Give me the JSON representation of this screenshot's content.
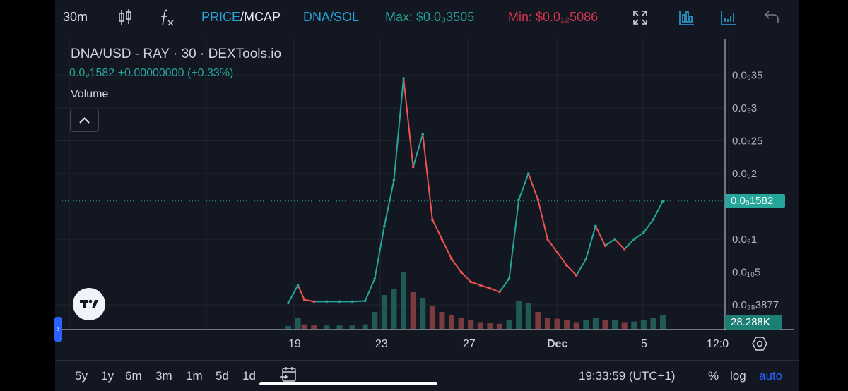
{
  "toolbar": {
    "interval": "30m",
    "price_label": "PRICE",
    "slash": "/",
    "mcap_label": "MCAP",
    "pair": "DNA/SOL",
    "max_label": "Max: $0.0₉3505",
    "min_label": "Min: $0.0₁₂5086",
    "icons": [
      "candles-icon",
      "fx-indicators-icon",
      "fullscreen-icon",
      "bar-chart-icon",
      "volume-chart-icon",
      "undo-icon"
    ]
  },
  "legend": {
    "title": "DNA/USD - RAY · 30 · DEXTools.io",
    "price_line": "0.0₉1582  +0.00000000 (+0.33%)",
    "volume": "Volume"
  },
  "price_scale": {
    "ticks": [
      {
        "label": "0.0₉35",
        "value": 3.5
      },
      {
        "label": "0.0₉3",
        "value": 3.0
      },
      {
        "label": "0.0₉25",
        "value": 2.5
      },
      {
        "label": "0.0₉2",
        "value": 2.0
      },
      {
        "label": "0.0₉1",
        "value": 1.0
      },
      {
        "label": "0.0₁₀5",
        "value": 0.5
      },
      {
        "label": "0.0₂₅3877",
        "value": 0.0
      }
    ],
    "current_price": "0.0₉1582",
    "current_value": 1.582,
    "volume_tag": "28.288K"
  },
  "time_axis": [
    "19",
    "23",
    "27",
    "Dec",
    "5",
    "12:0"
  ],
  "chart_data": {
    "type": "line",
    "title": "DNA/USD - RAY · 30 · DEXTools.io",
    "xlabel": "",
    "ylabel": "",
    "x": [
      0,
      3,
      5,
      8,
      12,
      16,
      20,
      24,
      27,
      30,
      33,
      36,
      39,
      42,
      45,
      48,
      51,
      54,
      57,
      60,
      63,
      66,
      69,
      72,
      75,
      78,
      81,
      84,
      87,
      90,
      93,
      96,
      99,
      102,
      105,
      108,
      111,
      114,
      117
    ],
    "series": [
      {
        "values": [
          0.03,
          0.3,
          0.08,
          0.05,
          0.05,
          0.05,
          0.05,
          0.06,
          0.4,
          1.2,
          1.9,
          3.45,
          2.1,
          2.6,
          1.3,
          1.0,
          0.7,
          0.5,
          0.35,
          0.3,
          0.25,
          0.2,
          0.4,
          1.6,
          2.0,
          1.6,
          1.0,
          0.8,
          0.6,
          0.45,
          0.7,
          1.2,
          0.9,
          1.0,
          0.85,
          1.0,
          1.1,
          1.3,
          1.58
        ]
      }
    ],
    "volume": [
      0.5,
      2.0,
      0.8,
      0.6,
      0.6,
      0.6,
      0.6,
      0.8,
      3.0,
      6.0,
      7.0,
      10.0,
      6.5,
      5.5,
      4.0,
      3.0,
      2.5,
      2.0,
      1.5,
      1.2,
      1.0,
      0.9,
      1.5,
      5.0,
      4.5,
      3.0,
      2.0,
      1.8,
      1.5,
      1.2,
      1.5,
      2.0,
      1.5,
      1.5,
      1.2,
      1.3,
      1.5,
      2.0,
      2.5
    ],
    "ylim": [
      0,
      3.6
    ],
    "legend": "none",
    "grid": true
  },
  "bottom_bar": {
    "ranges": [
      "5y",
      "1y",
      "6m",
      "3m",
      "1m",
      "5d",
      "1d"
    ],
    "time": "19:33:59 (UTC+1)",
    "percent": "%",
    "log": "log",
    "auto": "auto"
  },
  "colors": {
    "up": "#26a69a",
    "down": "#ef5350",
    "background": "#131722",
    "accent": "#2962ff"
  }
}
